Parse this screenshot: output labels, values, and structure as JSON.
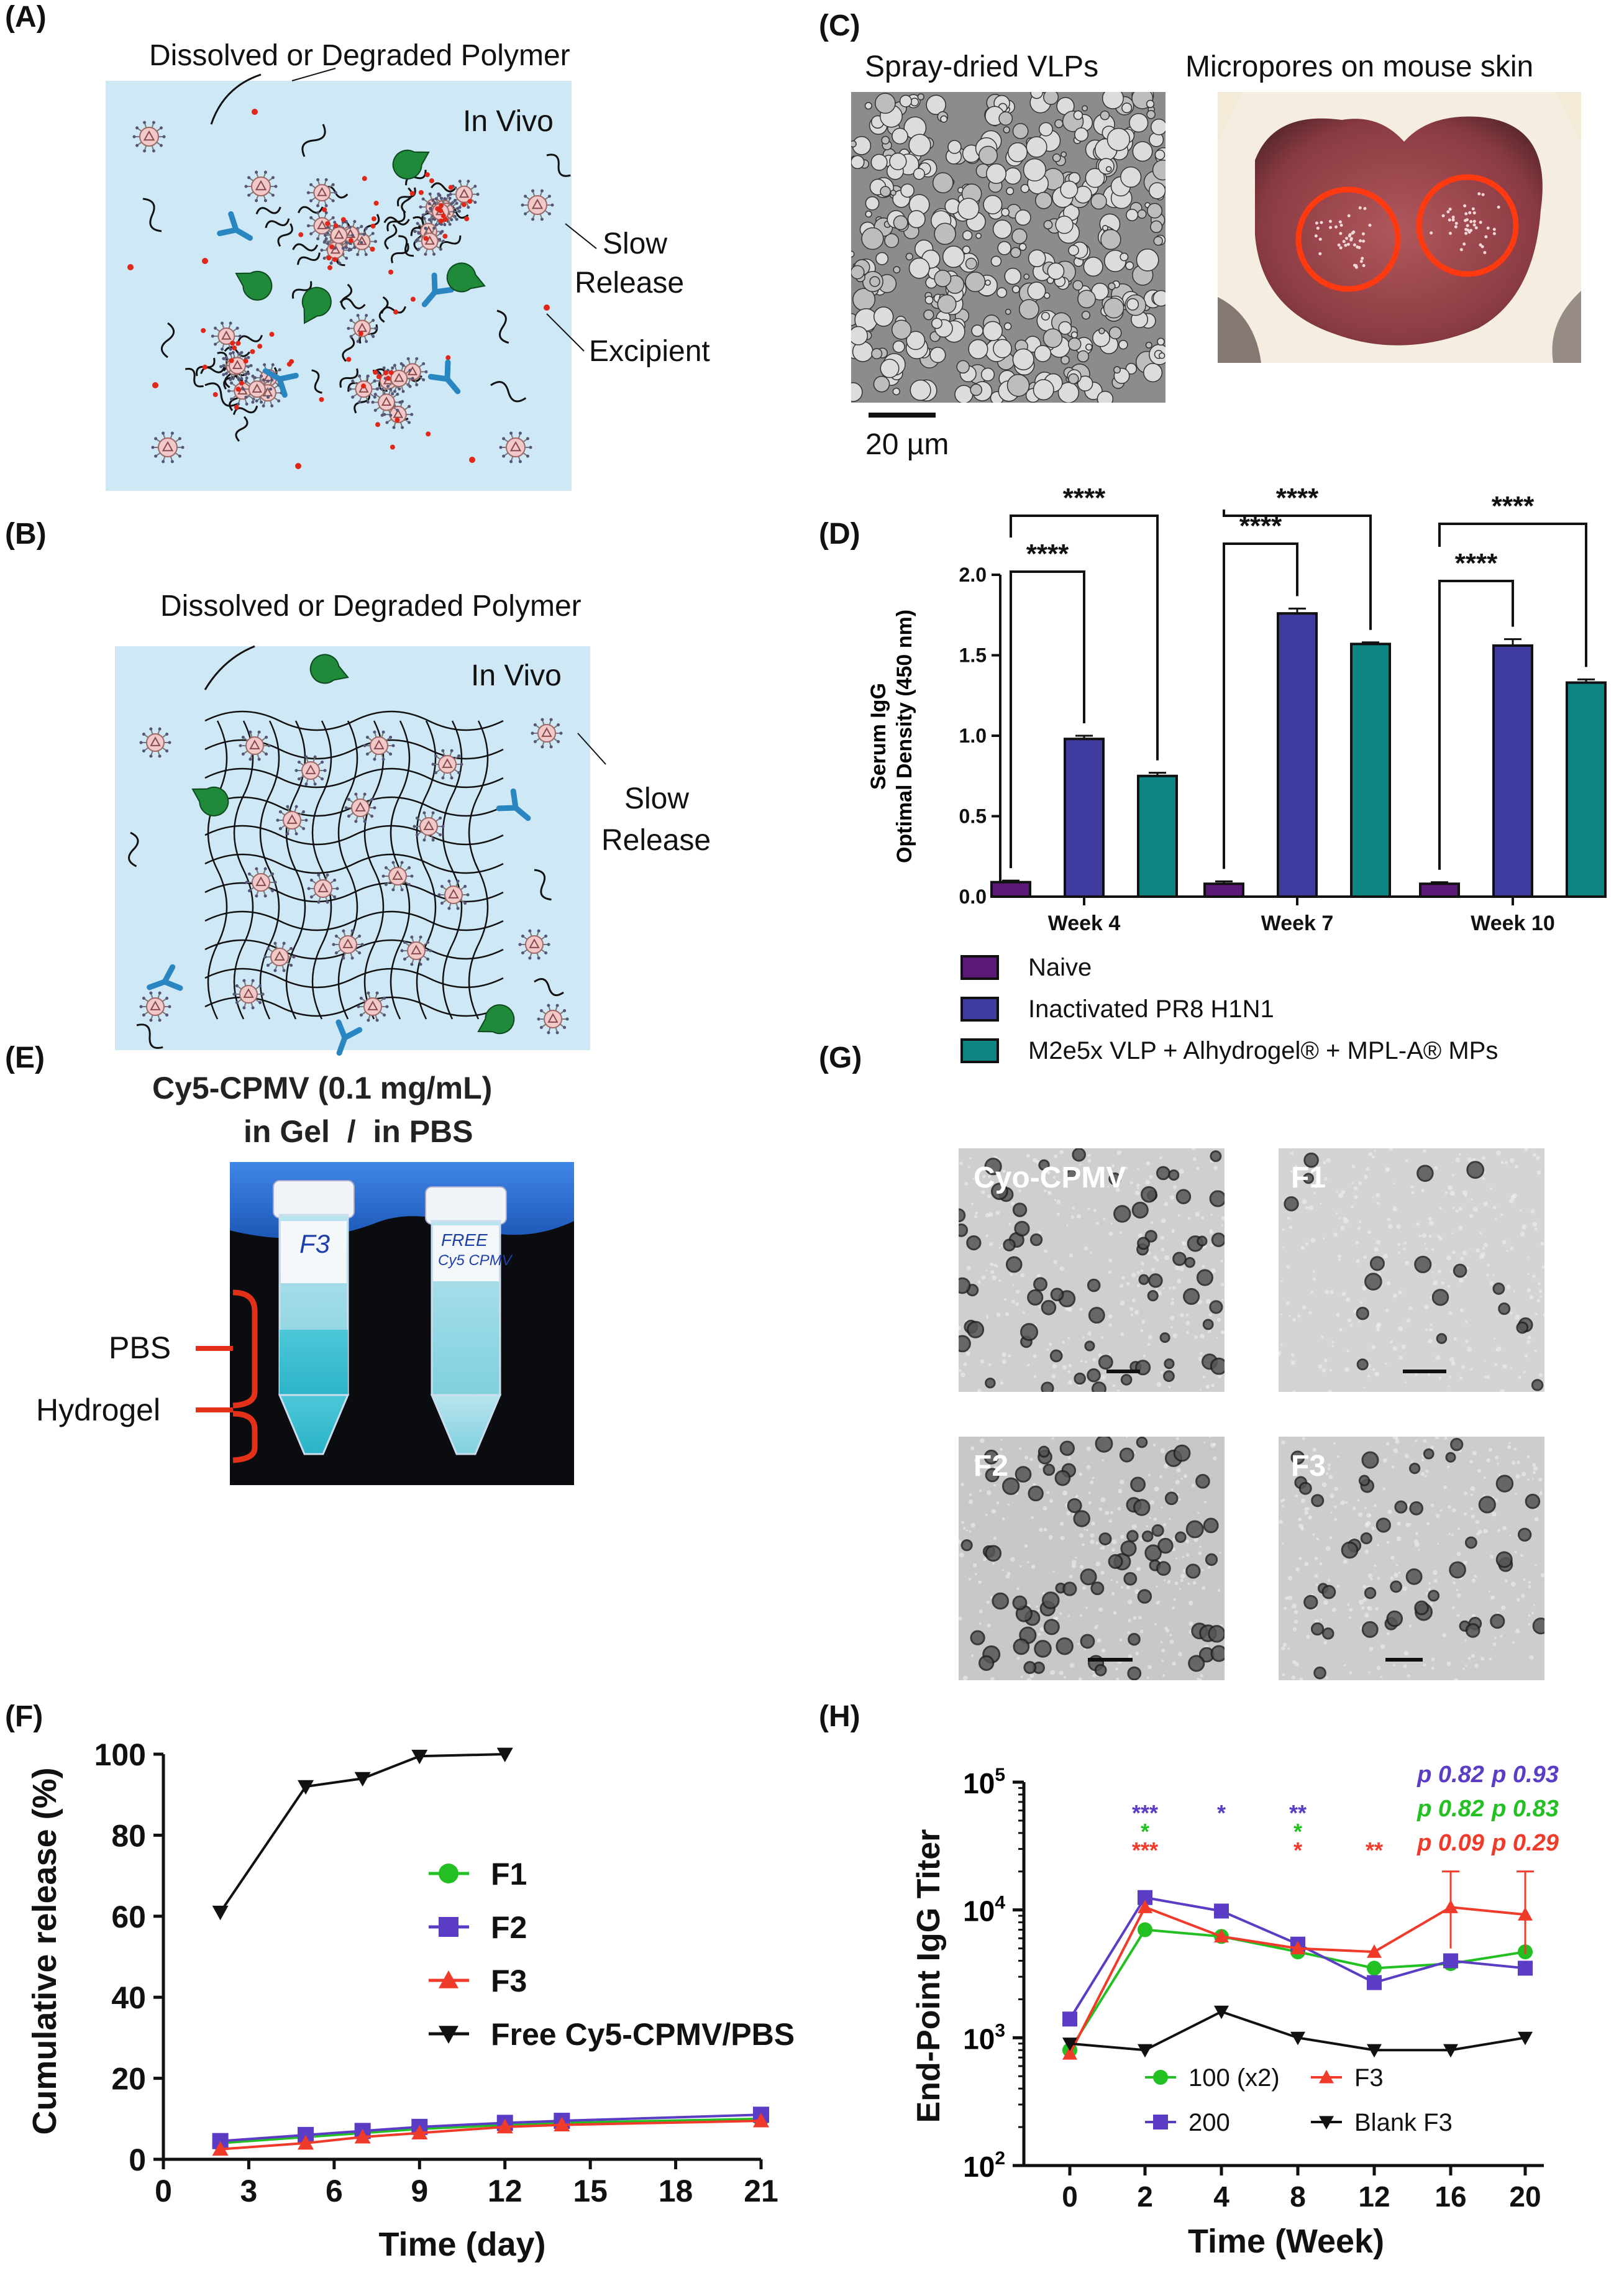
{
  "panels": {
    "a": {
      "label": "(A)",
      "polymer_label": "Dissolved or Degraded Polymer",
      "in_vivo": "In Vivo",
      "slow": "Slow",
      "release": "Release",
      "excipient": "Excipient"
    },
    "b": {
      "label": "(B)",
      "polymer_label": "Dissolved or Degraded Polymer",
      "in_vivo": "In Vivo",
      "slow": "Slow",
      "release": "Release"
    },
    "c": {
      "label": "(C)",
      "left_title": "Spray-dried VLPs",
      "right_title": "Micropores on mouse skin",
      "scale": "20 µm"
    },
    "d": {
      "label": "(D)"
    },
    "e": {
      "label": "(E)",
      "title_line1": "Cy5-CPMV (0.1 mg/mL)",
      "title_line2": "in Gel  /  in PBS",
      "pbs": "PBS",
      "hydrogel": "Hydrogel",
      "tube1": "F3",
      "tube2a": "FREE",
      "tube2b": "Cy5 CPMV"
    },
    "f": {
      "label": "(F)"
    },
    "g": {
      "label": "(G)",
      "tiles": [
        "Cyo-CPMV",
        "F1",
        "F2",
        "F3"
      ]
    },
    "h": {
      "label": "(H)"
    }
  },
  "colors": {
    "bg_blue": "#cfe8f5",
    "naive": "#5b1a78",
    "inactivated": "#3f3ba0",
    "m2e": "#0d8585",
    "green": "#22c022",
    "purple": "#5b3cc4",
    "red": "#f03a2a",
    "black": "#111111",
    "antibody": "#2a86c0",
    "enzyme": "#1f8a3a"
  },
  "chart_data": [
    {
      "id": "D",
      "type": "bar",
      "ylabel_line1": "Serum IgG",
      "ylabel_line2": "Optimal Density (450 nm)",
      "categories": [
        "Week 4",
        "Week 7",
        "Week 10"
      ],
      "yticks": [
        "0.0",
        "0.5",
        "1.0",
        "1.5",
        "2.0"
      ],
      "ylim": [
        0,
        2.0
      ],
      "series": [
        {
          "name": "Naive",
          "values": [
            0.09,
            0.08,
            0.08
          ],
          "errors": [
            0.01,
            0.015,
            0.01
          ]
        },
        {
          "name": "Inactivated PR8 H1N1",
          "values": [
            0.98,
            1.76,
            1.56
          ],
          "errors": [
            0.02,
            0.03,
            0.04
          ]
        },
        {
          "name": "M2e5x VLP + Alhydrogel® + MPL-A® MPs",
          "values": [
            0.75,
            1.57,
            1.33
          ],
          "errors": [
            0.02,
            0.01,
            0.02
          ]
        }
      ],
      "significance": "****",
      "legend": [
        "Naive",
        "Inactivated PR8 H1N1",
        "M2e5x VLP + Alhydrogel® + MPL-A® MPs"
      ]
    },
    {
      "id": "F",
      "type": "line",
      "xlabel": "Time (day)",
      "ylabel": "Cumulative release (%)",
      "xticks": [
        "0",
        "3",
        "6",
        "9",
        "12",
        "15",
        "18",
        "21"
      ],
      "yticks": [
        "0",
        "20",
        "40",
        "60",
        "80",
        "100"
      ],
      "xlim": [
        0,
        21
      ],
      "ylim": [
        0,
        100
      ],
      "legend": [
        "F1",
        "F2",
        "F3",
        "Free Cy5-CPMV/PBS"
      ],
      "series": [
        {
          "name": "F1",
          "x": [
            2,
            5,
            7,
            9,
            12,
            14,
            21
          ],
          "y": [
            4,
            5.5,
            6.5,
            7.5,
            8.5,
            9,
            10
          ]
        },
        {
          "name": "F2",
          "x": [
            2,
            5,
            7,
            9,
            12,
            14,
            21
          ],
          "y": [
            4.5,
            6,
            7,
            8,
            9,
            9.5,
            11
          ]
        },
        {
          "name": "F3",
          "x": [
            2,
            5,
            7,
            9,
            12,
            14,
            21
          ],
          "y": [
            2.5,
            4,
            5.5,
            6.5,
            8,
            8.5,
            9.5
          ]
        },
        {
          "name": "Free Cy5-CPMV/PBS",
          "x": [
            2,
            5,
            7,
            9,
            12
          ],
          "y": [
            61,
            92,
            94,
            99.5,
            100
          ]
        }
      ]
    },
    {
      "id": "H",
      "type": "line",
      "xlabel": "Time (Week)",
      "ylabel": "End-Point IgG Titer",
      "xticks": [
        "0",
        "2",
        "4",
        "8",
        "12",
        "16",
        "20"
      ],
      "yticks_exp": [
        "2",
        "3",
        "4",
        "5"
      ],
      "ytick_base": "10",
      "log_scale": true,
      "ylim": [
        100,
        100000
      ],
      "legend": [
        "100 (x2)",
        "F3",
        "200",
        "Blank F3"
      ],
      "series": [
        {
          "name": "100 (x2)",
          "y": [
            800,
            7000,
            6200,
            4700,
            3500,
            3800,
            4700
          ]
        },
        {
          "name": "200",
          "y": [
            1400,
            12500,
            9800,
            5400,
            2700,
            4000,
            3500
          ]
        },
        {
          "name": "F3",
          "y": [
            750,
            10500,
            6200,
            5000,
            4700,
            10500,
            9200
          ]
        },
        {
          "name": "Blank F3",
          "y": [
            900,
            800,
            1600,
            1000,
            800,
            800,
            1000
          ]
        }
      ],
      "stars": [
        {
          "x": "2",
          "purple": "***",
          "green": "*",
          "red": "***"
        },
        {
          "x": "4",
          "purple": "*"
        },
        {
          "x": "8",
          "purple": "**",
          "green": "*",
          "red": "*"
        },
        {
          "x": "12",
          "red": "**"
        }
      ],
      "pvalues": [
        {
          "x": "16",
          "purple": "p 0.82",
          "green": "p 0.82",
          "red": "p 0.09"
        },
        {
          "x": "20",
          "purple": "p 0.93",
          "green": "p 0.83",
          "red": "p 0.29"
        }
      ]
    }
  ]
}
